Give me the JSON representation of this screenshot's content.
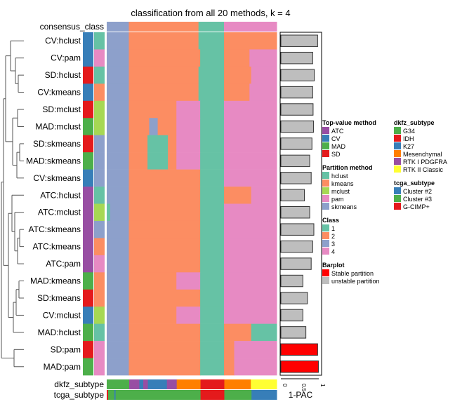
{
  "chart_data": {
    "type": "heatmap",
    "title": "classification from all 20 methods, k = 4",
    "consensus_label": "consensus_class",
    "consensus": [
      [
        0,
        0.13,
        "3"
      ],
      [
        0.13,
        0.54,
        "2"
      ],
      [
        0.54,
        0.69,
        "1"
      ],
      [
        0.69,
        1,
        "4"
      ]
    ],
    "rows": [
      {
        "label": "CV:hclust",
        "top": "CV",
        "part": "hclust",
        "pac": 0.97,
        "stable": false,
        "segs": [
          [
            0,
            0.13,
            "3"
          ],
          [
            0.13,
            0.54,
            "2"
          ],
          [
            0.54,
            0.69,
            "1"
          ],
          [
            0.69,
            1,
            "2"
          ]
        ]
      },
      {
        "label": "CV:pam",
        "top": "CV",
        "part": "pam",
        "pac": 0.84,
        "stable": false,
        "segs": [
          [
            0,
            0.13,
            "3"
          ],
          [
            0.13,
            0.55,
            "2"
          ],
          [
            0.55,
            0.69,
            "1"
          ],
          [
            0.69,
            0.84,
            "2"
          ],
          [
            0.84,
            1,
            "4"
          ]
        ]
      },
      {
        "label": "SD:hclust",
        "top": "SD",
        "part": "hclust",
        "pac": 0.88,
        "stable": false,
        "segs": [
          [
            0,
            0.13,
            "3"
          ],
          [
            0.13,
            0.54,
            "2"
          ],
          [
            0.54,
            0.69,
            "1"
          ],
          [
            0.69,
            0.85,
            "2"
          ],
          [
            0.85,
            1,
            "4"
          ]
        ]
      },
      {
        "label": "CV:kmeans",
        "top": "CV",
        "part": "kmeans",
        "pac": 0.84,
        "stable": false,
        "segs": [
          [
            0,
            0.13,
            "3"
          ],
          [
            0.13,
            0.54,
            "2"
          ],
          [
            0.54,
            0.69,
            "1"
          ],
          [
            0.69,
            0.84,
            "2"
          ],
          [
            0.84,
            1,
            "4"
          ]
        ]
      },
      {
        "label": "SD:mclust",
        "top": "SD",
        "part": "mclust",
        "pac": 0.85,
        "stable": false,
        "segs": [
          [
            0,
            0.13,
            "3"
          ],
          [
            0.13,
            0.41,
            "2"
          ],
          [
            0.41,
            0.55,
            "4"
          ],
          [
            0.55,
            0.69,
            "1"
          ],
          [
            0.69,
            1,
            "4"
          ]
        ]
      },
      {
        "label": "MAD:mclust",
        "top": "MAD",
        "part": "mclust",
        "pac": 0.86,
        "stable": false,
        "segs": [
          [
            0,
            0.13,
            "3"
          ],
          [
            0.13,
            0.25,
            "2"
          ],
          [
            0.25,
            0.3,
            "3"
          ],
          [
            0.3,
            0.41,
            "2"
          ],
          [
            0.41,
            0.55,
            "4"
          ],
          [
            0.55,
            0.69,
            "1"
          ],
          [
            0.69,
            1,
            "4"
          ]
        ]
      },
      {
        "label": "SD:skmeans",
        "top": "SD",
        "part": "skmeans",
        "pac": 0.82,
        "stable": false,
        "segs": [
          [
            0,
            0.13,
            "3"
          ],
          [
            0.13,
            0.24,
            "2"
          ],
          [
            0.24,
            0.36,
            "1"
          ],
          [
            0.36,
            0.41,
            "2"
          ],
          [
            0.41,
            0.55,
            "4"
          ],
          [
            0.55,
            0.69,
            "1"
          ],
          [
            0.69,
            1,
            "4"
          ]
        ]
      },
      {
        "label": "MAD:skmeans",
        "top": "MAD",
        "part": "skmeans",
        "pac": 0.76,
        "stable": false,
        "segs": [
          [
            0,
            0.13,
            "3"
          ],
          [
            0.13,
            0.24,
            "2"
          ],
          [
            0.24,
            0.36,
            "1"
          ],
          [
            0.36,
            0.41,
            "2"
          ],
          [
            0.41,
            0.55,
            "4"
          ],
          [
            0.55,
            0.69,
            "1"
          ],
          [
            0.69,
            1,
            "4"
          ]
        ]
      },
      {
        "label": "CV:skmeans",
        "top": "CV",
        "part": "skmeans",
        "pac": 0.8,
        "stable": false,
        "segs": [
          [
            0,
            0.13,
            "3"
          ],
          [
            0.13,
            0.55,
            "2"
          ],
          [
            0.55,
            0.69,
            "1"
          ],
          [
            0.69,
            1,
            "4"
          ]
        ]
      },
      {
        "label": "ATC:hclust",
        "top": "ATC",
        "part": "hclust",
        "pac": 0.62,
        "stable": false,
        "segs": [
          [
            0,
            0.13,
            "3"
          ],
          [
            0.13,
            0.55,
            "2"
          ],
          [
            0.55,
            0.69,
            "1"
          ],
          [
            0.69,
            0.85,
            "2"
          ],
          [
            0.85,
            1,
            "4"
          ]
        ]
      },
      {
        "label": "ATC:mclust",
        "top": "ATC",
        "part": "mclust",
        "pac": 0.76,
        "stable": false,
        "segs": [
          [
            0,
            0.02,
            "1"
          ],
          [
            0.02,
            0.13,
            "3"
          ],
          [
            0.13,
            0.55,
            "2"
          ],
          [
            0.55,
            0.69,
            "1"
          ],
          [
            0.69,
            1,
            "4"
          ]
        ]
      },
      {
        "label": "ATC:skmeans",
        "top": "ATC",
        "part": "skmeans",
        "pac": 0.87,
        "stable": false,
        "segs": [
          [
            0,
            0.13,
            "3"
          ],
          [
            0.13,
            0.55,
            "2"
          ],
          [
            0.55,
            0.69,
            "1"
          ],
          [
            0.69,
            1,
            "4"
          ]
        ]
      },
      {
        "label": "ATC:kmeans",
        "top": "ATC",
        "part": "kmeans",
        "pac": 0.84,
        "stable": false,
        "segs": [
          [
            0,
            0.13,
            "3"
          ],
          [
            0.13,
            0.55,
            "2"
          ],
          [
            0.55,
            0.69,
            "1"
          ],
          [
            0.69,
            1,
            "4"
          ]
        ]
      },
      {
        "label": "ATC:pam",
        "top": "ATC",
        "part": "pam",
        "pac": 0.8,
        "stable": false,
        "segs": [
          [
            0,
            0.13,
            "3"
          ],
          [
            0.13,
            0.55,
            "2"
          ],
          [
            0.55,
            0.69,
            "1"
          ],
          [
            0.69,
            1,
            "4"
          ]
        ]
      },
      {
        "label": "MAD:kmeans",
        "top": "MAD",
        "part": "kmeans",
        "pac": 0.58,
        "stable": false,
        "segs": [
          [
            0,
            0.13,
            "3"
          ],
          [
            0.13,
            0.41,
            "2"
          ],
          [
            0.41,
            0.55,
            "4"
          ],
          [
            0.55,
            0.69,
            "1"
          ],
          [
            0.69,
            1,
            "4"
          ]
        ]
      },
      {
        "label": "SD:kmeans",
        "top": "SD",
        "part": "kmeans",
        "pac": 0.7,
        "stable": false,
        "segs": [
          [
            0,
            0.13,
            "3"
          ],
          [
            0.13,
            0.55,
            "2"
          ],
          [
            0.55,
            0.69,
            "1"
          ],
          [
            0.69,
            1,
            "4"
          ]
        ]
      },
      {
        "label": "CV:mclust",
        "top": "CV",
        "part": "mclust",
        "pac": 0.58,
        "stable": false,
        "segs": [
          [
            0,
            0.13,
            "3"
          ],
          [
            0.13,
            0.41,
            "2"
          ],
          [
            0.41,
            0.55,
            "4"
          ],
          [
            0.55,
            0.69,
            "1"
          ],
          [
            0.69,
            1,
            "4"
          ]
        ]
      },
      {
        "label": "MAD:hclust",
        "top": "MAD",
        "part": "hclust",
        "pac": 0.66,
        "stable": false,
        "segs": [
          [
            0,
            0.13,
            "3"
          ],
          [
            0.13,
            0.55,
            "2"
          ],
          [
            0.55,
            0.69,
            "1"
          ],
          [
            0.69,
            0.85,
            "2"
          ],
          [
            0.85,
            1,
            "1"
          ]
        ]
      },
      {
        "label": "SD:pam",
        "top": "SD",
        "part": "pam",
        "pac": 0.97,
        "stable": true,
        "segs": [
          [
            0,
            0.13,
            "3"
          ],
          [
            0.13,
            0.55,
            "2"
          ],
          [
            0.55,
            0.69,
            "1"
          ],
          [
            0.69,
            0.75,
            "2"
          ],
          [
            0.75,
            1,
            "4"
          ]
        ]
      },
      {
        "label": "MAD:pam",
        "top": "MAD",
        "part": "pam",
        "pac": 0.99,
        "stable": true,
        "segs": [
          [
            0,
            0.13,
            "3"
          ],
          [
            0.13,
            0.55,
            "2"
          ],
          [
            0.55,
            0.69,
            "1"
          ],
          [
            0.69,
            0.75,
            "2"
          ],
          [
            0.75,
            1,
            "4"
          ]
        ]
      }
    ],
    "bottom_annotations": [
      {
        "label": "dkfz_subtype",
        "segs": [
          [
            0,
            0.132,
            "G34"
          ],
          [
            0.132,
            0.192,
            "RTK I PDGFRA"
          ],
          [
            0.192,
            0.215,
            "K27"
          ],
          [
            0.215,
            0.242,
            "RTK I PDGFRA"
          ],
          [
            0.242,
            0.354,
            "K27"
          ],
          [
            0.354,
            0.412,
            "RTK I PDGFRA"
          ],
          [
            0.412,
            0.552,
            "Mesenchymal"
          ],
          [
            0.552,
            0.692,
            "IDH"
          ],
          [
            0.692,
            0.848,
            "Mesenchymal"
          ],
          [
            0.848,
            1,
            "RTK II Classic"
          ]
        ]
      },
      {
        "label": "tcga_subtype",
        "segs": [
          [
            0,
            0.008,
            "G-CIMP+"
          ],
          [
            0.008,
            0.045,
            "Cluster #3"
          ],
          [
            0.045,
            0.052,
            "Cluster #2"
          ],
          [
            0.052,
            0.552,
            "Cluster #3"
          ],
          [
            0.552,
            0.692,
            "G-CIMP+"
          ],
          [
            0.692,
            0.852,
            "Cluster #3"
          ],
          [
            0.852,
            1,
            "Cluster #2"
          ]
        ]
      }
    ],
    "barplot": {
      "xlabel": "1-PAC",
      "xlim": [
        0,
        1
      ],
      "ticks": [
        "0",
        "0.5",
        "1"
      ]
    },
    "legends": [
      {
        "title": "Top-value method",
        "items": [
          [
            "ATC",
            "#984EA3"
          ],
          [
            "CV",
            "#377EB8"
          ],
          [
            "MAD",
            "#4DAF4A"
          ],
          [
            "SD",
            "#E41A1C"
          ]
        ]
      },
      {
        "title": "Partition method",
        "items": [
          [
            "hclust",
            "#66C2A5"
          ],
          [
            "kmeans",
            "#FC8D62"
          ],
          [
            "mclust",
            "#A6D854"
          ],
          [
            "pam",
            "#E78AC3"
          ],
          [
            "skmeans",
            "#8DA0CB"
          ]
        ]
      },
      {
        "title": "Class",
        "items": [
          [
            "1",
            "#66C2A5"
          ],
          [
            "2",
            "#FC8D62"
          ],
          [
            "3",
            "#8DA0CB"
          ],
          [
            "4",
            "#E78AC3"
          ]
        ]
      },
      {
        "title": "Barplot",
        "items": [
          [
            "Stable partition",
            "#FF0000"
          ],
          [
            "unstable partition",
            "#BEBEBE"
          ]
        ]
      },
      {
        "title": "dkfz_subtype",
        "items": [
          [
            "G34",
            "#4DAF4A"
          ],
          [
            "IDH",
            "#E41A1C"
          ],
          [
            "K27",
            "#377EB8"
          ],
          [
            "Mesenchymal",
            "#FF7F00"
          ],
          [
            "RTK I PDGFRA",
            "#984EA3"
          ],
          [
            "RTK II Classic",
            "#FFFF33"
          ]
        ]
      },
      {
        "title": "tcga_subtype",
        "items": [
          [
            "Cluster #2",
            "#377EB8"
          ],
          [
            "Cluster #3",
            "#4DAF4A"
          ],
          [
            "G-CIMP+",
            "#E41A1C"
          ]
        ]
      }
    ]
  }
}
